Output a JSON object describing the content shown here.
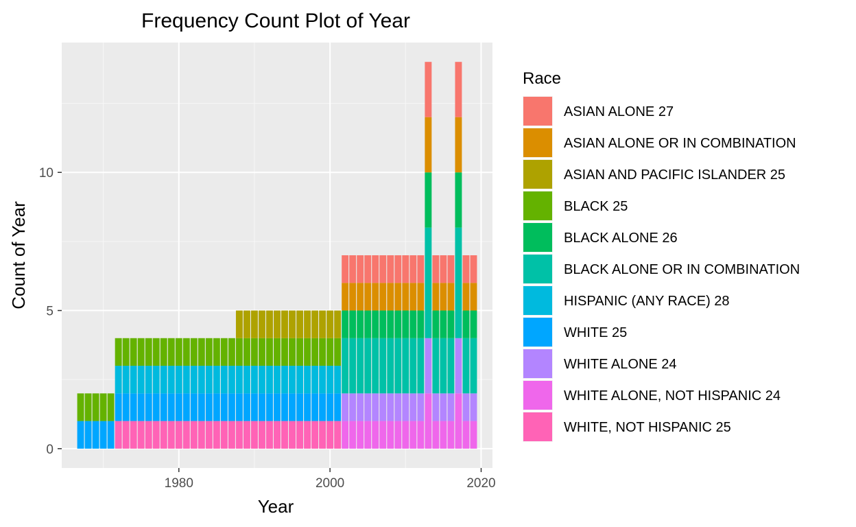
{
  "chart_data": {
    "type": "bar",
    "stacked": true,
    "title": "Frequency Count Plot of Year",
    "xlabel": "Year",
    "ylabel": "Count of Year",
    "xlim": [
      1964.5,
      2021.5
    ],
    "ylim": [
      -0.7,
      14.7
    ],
    "x_ticks": [
      1980,
      2000,
      2020
    ],
    "y_ticks": [
      0,
      5,
      10
    ],
    "grid": true,
    "legend": {
      "title": "Race",
      "placement": "right"
    },
    "series": [
      {
        "name": "ASIAN ALONE 27",
        "color": "#F8766D",
        "points": [
          {
            "from": 2002,
            "to": 2019,
            "y": 1
          },
          {
            "x": 2013,
            "y": 2
          },
          {
            "x": 2017,
            "y": 2
          }
        ]
      },
      {
        "name": "ASIAN ALONE OR IN COMBINATION",
        "color": "#DB8E00",
        "points": [
          {
            "from": 2002,
            "to": 2019,
            "y": 1
          },
          {
            "x": 2013,
            "y": 2
          },
          {
            "x": 2017,
            "y": 2
          }
        ]
      },
      {
        "name": "ASIAN AND PACIFIC ISLANDER 25",
        "color": "#AEA200",
        "points": [
          {
            "from": 1988,
            "to": 2001,
            "y": 1
          }
        ]
      },
      {
        "name": "BLACK 25",
        "color": "#64B200",
        "points": [
          {
            "from": 1967,
            "to": 2001,
            "y": 1
          }
        ]
      },
      {
        "name": "BLACK ALONE 26",
        "color": "#00BD5C",
        "points": [
          {
            "from": 2002,
            "to": 2019,
            "y": 1
          },
          {
            "x": 2013,
            "y": 2
          },
          {
            "x": 2017,
            "y": 2
          }
        ]
      },
      {
        "name": "BLACK ALONE OR IN COMBINATION",
        "color": "#00C1A7",
        "points": [
          {
            "from": 2002,
            "to": 2019,
            "y": 2
          },
          {
            "x": 2013,
            "y": 4
          },
          {
            "x": 2017,
            "y": 4
          }
        ]
      },
      {
        "name": "HISPANIC (ANY RACE) 28",
        "color": "#00BADE",
        "points": [
          {
            "from": 1972,
            "to": 2001,
            "y": 1
          }
        ]
      },
      {
        "name": "WHITE 25",
        "color": "#00A6FF",
        "points": [
          {
            "from": 1967,
            "to": 2001,
            "y": 1
          }
        ]
      },
      {
        "name": "WHITE ALONE 24",
        "color": "#B385FF",
        "points": [
          {
            "from": 2002,
            "to": 2019,
            "y": 1
          },
          {
            "x": 2013,
            "y": 2
          },
          {
            "x": 2017,
            "y": 2
          }
        ]
      },
      {
        "name": "WHITE ALONE, NOT HISPANIC 24",
        "color": "#EF67EB",
        "points": [
          {
            "from": 2002,
            "to": 2019,
            "y": 1
          },
          {
            "x": 2013,
            "y": 2
          },
          {
            "x": 2017,
            "y": 2
          }
        ]
      },
      {
        "name": "WHITE, NOT HISPANIC 25",
        "color": "#FF63B6",
        "points": [
          {
            "from": 1972,
            "to": 2001,
            "y": 1
          }
        ]
      }
    ]
  }
}
